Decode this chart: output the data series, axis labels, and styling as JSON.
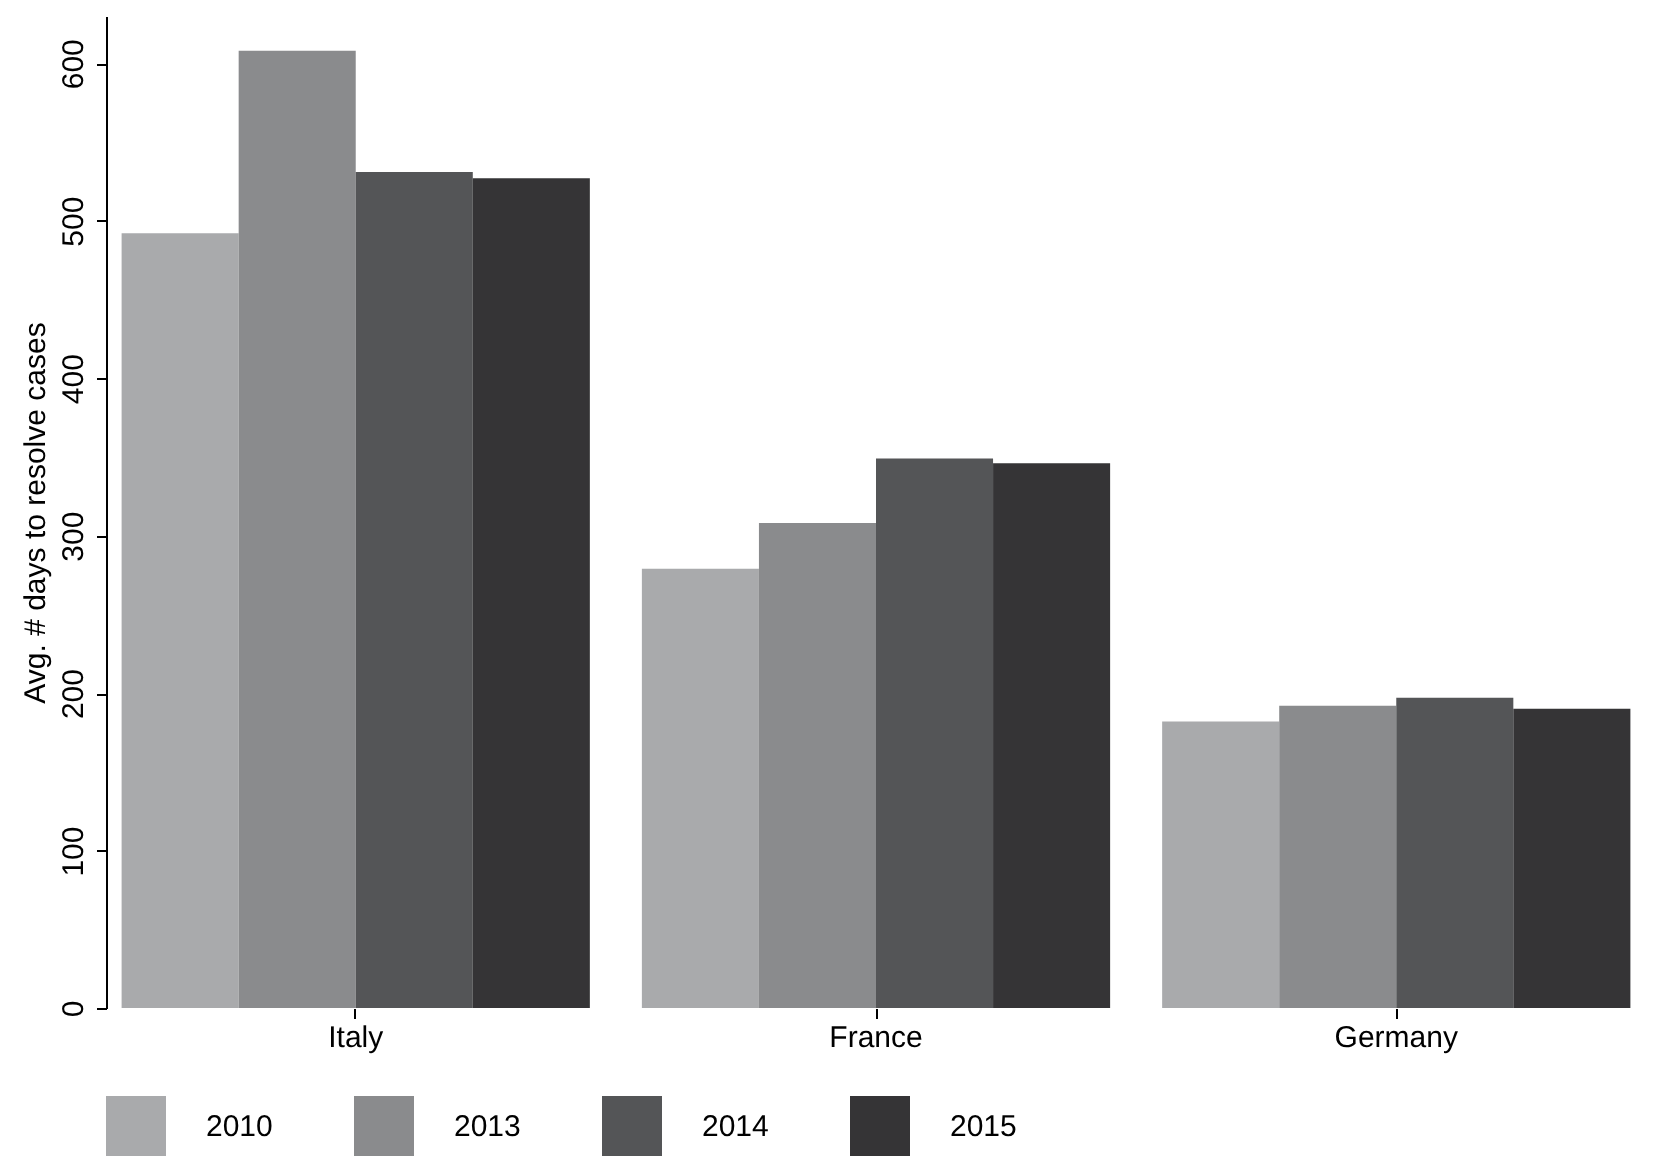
{
  "chart_data": {
    "type": "bar",
    "ylabel": "Avg. # days to resolve cases",
    "categories": [
      "Italy",
      "France",
      "Germany"
    ],
    "series": [
      {
        "name": "2010",
        "color": "#a9aaac",
        "values": [
          492,
          279,
          182
        ]
      },
      {
        "name": "2013",
        "color": "#8a8b8d",
        "values": [
          608,
          308,
          192
        ]
      },
      {
        "name": "2014",
        "color": "#545557",
        "values": [
          531,
          349,
          197
        ]
      },
      {
        "name": "2015",
        "color": "#353436",
        "values": [
          527,
          346,
          190
        ]
      }
    ],
    "ylim": [
      0,
      630
    ],
    "yticks": [
      0,
      100,
      200,
      300,
      400,
      500,
      600
    ],
    "grid": false,
    "legend": "bottom"
  }
}
